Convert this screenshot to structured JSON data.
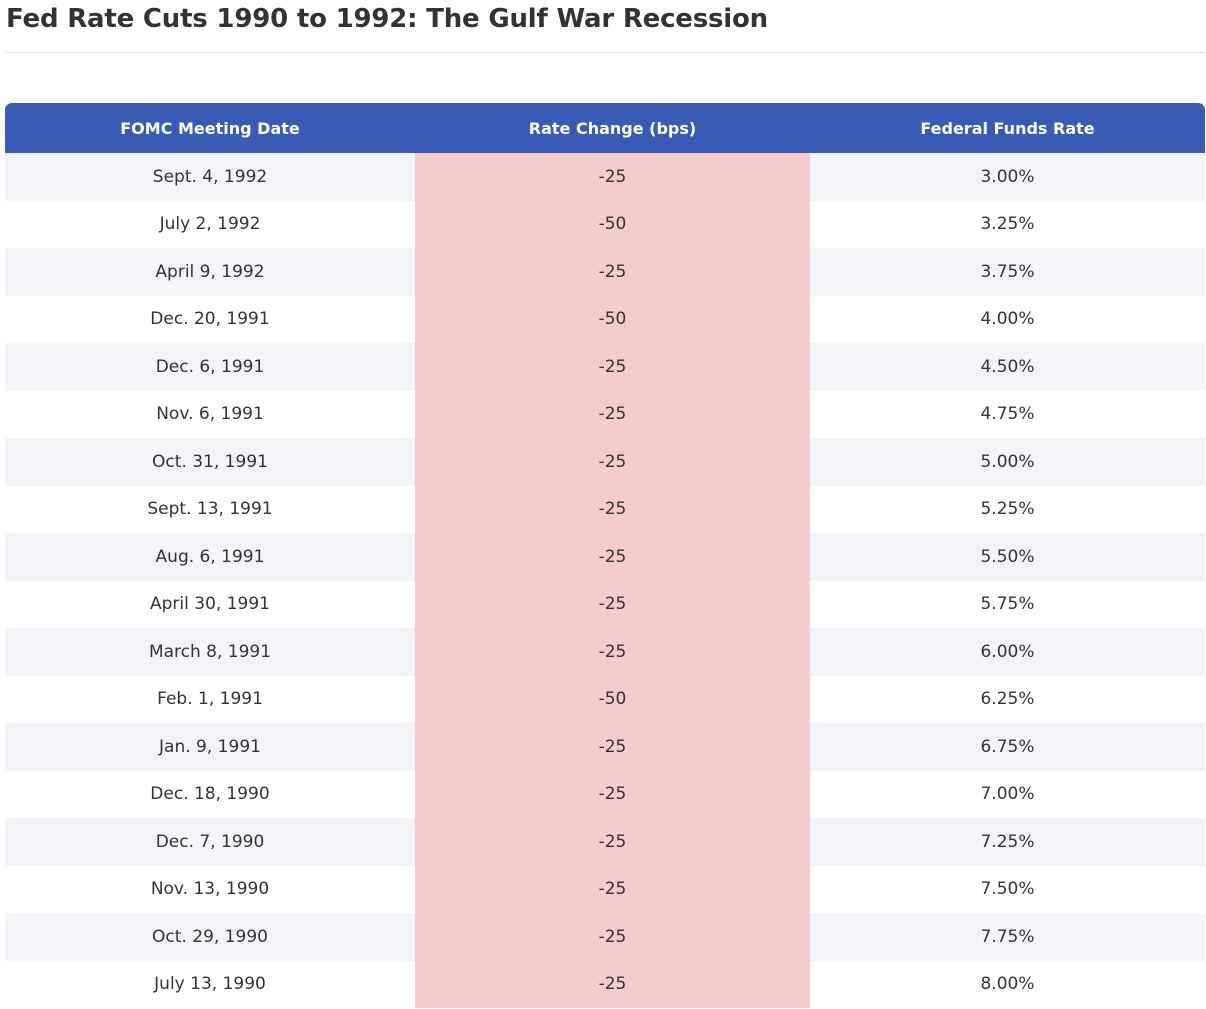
{
  "title": "Fed Rate Cuts 1990 to 1992: The Gulf War Recession",
  "colors": {
    "header_background": "#3a5bb5",
    "highlight_column": "#f3cccb",
    "stripe": "#f3f4f8"
  },
  "table": {
    "headers": [
      "FOMC Meeting Date",
      "Rate Change (bps)",
      "Federal Funds Rate"
    ],
    "rows": [
      {
        "date": "Sept. 4, 1992",
        "change": "-25",
        "rate": "3.00%"
      },
      {
        "date": "July 2, 1992",
        "change": "-50",
        "rate": "3.25%"
      },
      {
        "date": "April 9, 1992",
        "change": "-25",
        "rate": "3.75%"
      },
      {
        "date": "Dec. 20, 1991",
        "change": "-50",
        "rate": "4.00%"
      },
      {
        "date": "Dec. 6, 1991",
        "change": "-25",
        "rate": "4.50%"
      },
      {
        "date": "Nov. 6, 1991",
        "change": "-25",
        "rate": "4.75%"
      },
      {
        "date": "Oct. 31, 1991",
        "change": "-25",
        "rate": "5.00%"
      },
      {
        "date": "Sept. 13, 1991",
        "change": "-25",
        "rate": "5.25%"
      },
      {
        "date": "Aug. 6, 1991",
        "change": "-25",
        "rate": "5.50%"
      },
      {
        "date": "April 30, 1991",
        "change": "-25",
        "rate": "5.75%"
      },
      {
        "date": "March 8, 1991",
        "change": "-25",
        "rate": "6.00%"
      },
      {
        "date": "Feb. 1, 1991",
        "change": "-50",
        "rate": "6.25%"
      },
      {
        "date": "Jan. 9, 1991",
        "change": "-25",
        "rate": "6.75%"
      },
      {
        "date": "Dec. 18, 1990",
        "change": "-25",
        "rate": "7.00%"
      },
      {
        "date": "Dec. 7, 1990",
        "change": "-25",
        "rate": "7.25%"
      },
      {
        "date": "Nov. 13, 1990",
        "change": "-25",
        "rate": "7.50%"
      },
      {
        "date": "Oct. 29, 1990",
        "change": "-25",
        "rate": "7.75%"
      },
      {
        "date": "July 13, 1990",
        "change": "-25",
        "rate": "8.00%"
      }
    ]
  }
}
